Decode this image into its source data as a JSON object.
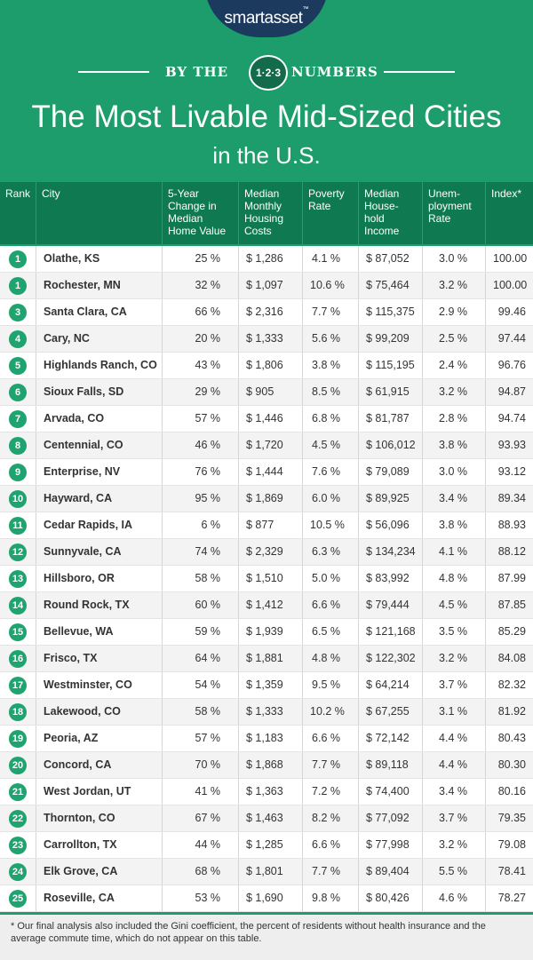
{
  "logo": {
    "text": "smartasset",
    "mark": "™"
  },
  "banner": {
    "left": "BY THE",
    "badge": "1·2·3",
    "right": "NUMBERS"
  },
  "title": {
    "line1": "The Most Livable Mid-Sized Cities",
    "line2": "in the U.S."
  },
  "table": {
    "headers": [
      [
        "Rank"
      ],
      [
        "City"
      ],
      [
        "5-Year",
        "Change in",
        "Median",
        "Home Value"
      ],
      [
        "Median",
        "Monthly",
        "Housing",
        "Costs"
      ],
      [
        "Poverty",
        "Rate"
      ],
      [
        "Median",
        "House-",
        "hold",
        "Income"
      ],
      [
        "Unem-",
        "ployment",
        "Rate"
      ],
      [
        "Index*"
      ]
    ],
    "rows": [
      [
        "1",
        "Olathe, KS",
        "25 %",
        "$ 1,286",
        "4.1 %",
        "$ 87,052",
        "3.0 %",
        "100.00"
      ],
      [
        "1",
        "Rochester, MN",
        "32 %",
        "$ 1,097",
        "10.6 %",
        "$ 75,464",
        "3.2 %",
        "100.00"
      ],
      [
        "3",
        "Santa Clara, CA",
        "66 %",
        "$ 2,316",
        "7.7 %",
        "$ 115,375",
        "2.9 %",
        "99.46"
      ],
      [
        "4",
        "Cary, NC",
        "20 %",
        "$ 1,333",
        "5.6 %",
        "$ 99,209",
        "2.5 %",
        "97.44"
      ],
      [
        "5",
        "Highlands Ranch, CO",
        "43 %",
        "$ 1,806",
        "3.8 %",
        "$ 115,195",
        "2.4 %",
        "96.76"
      ],
      [
        "6",
        "Sioux Falls, SD",
        "29 %",
        "$ 905",
        "8.5 %",
        "$ 61,915",
        "3.2 %",
        "94.87"
      ],
      [
        "7",
        "Arvada, CO",
        "57 %",
        "$ 1,446",
        "6.8 %",
        "$ 81,787",
        "2.8 %",
        "94.74"
      ],
      [
        "8",
        "Centennial, CO",
        "46 %",
        "$ 1,720",
        "4.5 %",
        "$ 106,012",
        "3.8 %",
        "93.93"
      ],
      [
        "9",
        "Enterprise, NV",
        "76 %",
        "$ 1,444",
        "7.6 %",
        "$ 79,089",
        "3.0 %",
        "93.12"
      ],
      [
        "10",
        "Hayward, CA",
        "95 %",
        "$ 1,869",
        "6.0 %",
        "$ 89,925",
        "3.4 %",
        "89.34"
      ],
      [
        "11",
        "Cedar Rapids, IA",
        "6 %",
        "$ 877",
        "10.5 %",
        "$ 56,096",
        "3.8 %",
        "88.93"
      ],
      [
        "12",
        "Sunnyvale, CA",
        "74 %",
        "$ 2,329",
        "6.3 %",
        "$ 134,234",
        "4.1 %",
        "88.12"
      ],
      [
        "13",
        "Hillsboro, OR",
        "58 %",
        "$ 1,510",
        "5.0 %",
        "$ 83,992",
        "4.8 %",
        "87.99"
      ],
      [
        "14",
        "Round Rock, TX",
        "60 %",
        "$ 1,412",
        "6.6 %",
        "$ 79,444",
        "4.5 %",
        "87.85"
      ],
      [
        "15",
        "Bellevue, WA",
        "59 %",
        "$ 1,939",
        "6.5 %",
        "$ 121,168",
        "3.5 %",
        "85.29"
      ],
      [
        "16",
        "Frisco, TX",
        "64 %",
        "$ 1,881",
        "4.8 %",
        "$ 122,302",
        "3.2 %",
        "84.08"
      ],
      [
        "17",
        "Westminster, CO",
        "54 %",
        "$ 1,359",
        "9.5 %",
        "$ 64,214",
        "3.7 %",
        "82.32"
      ],
      [
        "18",
        "Lakewood, CO",
        "58 %",
        "$ 1,333",
        "10.2 %",
        "$ 67,255",
        "3.1 %",
        "81.92"
      ],
      [
        "19",
        "Peoria, AZ",
        "57 %",
        "$ 1,183",
        "6.6 %",
        "$ 72,142",
        "4.4 %",
        "80.43"
      ],
      [
        "20",
        "Concord, CA",
        "70 %",
        "$ 1,868",
        "7.7 %",
        "$ 89,118",
        "4.4 %",
        "80.30"
      ],
      [
        "21",
        "West Jordan, UT",
        "41 %",
        "$ 1,363",
        "7.2 %",
        "$ 74,400",
        "3.4 %",
        "80.16"
      ],
      [
        "22",
        "Thornton, CO",
        "67 %",
        "$ 1,463",
        "8.2 %",
        "$ 77,092",
        "3.7 %",
        "79.35"
      ],
      [
        "23",
        "Carrollton, TX",
        "44 %",
        "$ 1,285",
        "6.6 %",
        "$ 77,998",
        "3.2 %",
        "79.08"
      ],
      [
        "24",
        "Elk Grove, CA",
        "68 %",
        "$ 1,801",
        "7.7 %",
        "$ 89,404",
        "5.5 %",
        "78.41"
      ],
      [
        "25",
        "Roseville, CA",
        "53 %",
        "$ 1,690",
        "9.8 %",
        "$ 80,426",
        "4.6 %",
        "78.27"
      ]
    ]
  },
  "footnote": "* Our final analysis also included the Gini coefficient, the percent of residents without health insurance and the average commute time, which do not appear on this table."
}
